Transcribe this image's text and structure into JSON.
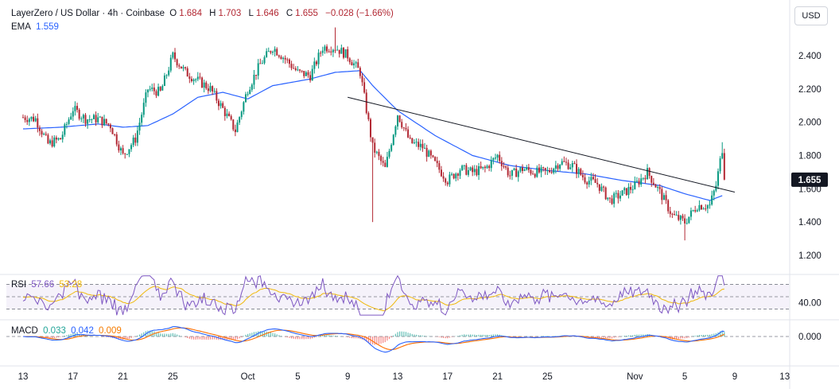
{
  "header": {
    "symbol": "LayerZero / US Dollar · 4h · Coinbase",
    "open_label": "O",
    "open": "1.684",
    "high_label": "H",
    "high": "1.703",
    "low_label": "L",
    "low": "1.646",
    "close_label": "C",
    "close": "1.655",
    "change": "−0.028 (−1.66%)",
    "ema_label": "EMA",
    "ema_value": "1.559"
  },
  "currency_button": "USD",
  "rsi_legend": {
    "label": "RSI",
    "rsi": "57.66",
    "ma": "53.28"
  },
  "macd_legend": {
    "label": "MACD",
    "hist": "0.033",
    "macd": "0.042",
    "signal": "0.009"
  },
  "colors": {
    "up": "#089981",
    "down": "#b22833",
    "ema": "#2962ff",
    "trendline": "#131722",
    "rsi": "#7e57c2",
    "rsi_ma": "#f0b90b",
    "macd": "#2962ff",
    "signal": "#ff6d00"
  },
  "chart_data": [
    {
      "type": "candlestick",
      "title": "LayerZero / US Dollar · 4h · Coinbase",
      "price_axis_ticks": [
        "2.400",
        "2.200",
        "2.000",
        "1.800",
        "1.600",
        "1.400",
        "1.200"
      ],
      "price_axis_values": [
        2.4,
        2.2,
        2.0,
        1.8,
        1.6,
        1.4,
        1.2
      ],
      "ylim": [
        1.1,
        2.7
      ],
      "last_price": "1.655",
      "x_ticks": [
        "13",
        "17",
        "21",
        "25",
        "Oct",
        "5",
        "9",
        "13",
        "17",
        "21",
        "25",
        "Nov",
        "5",
        "9",
        "13"
      ],
      "price_keypoints": [
        {
          "x": "Sep 13",
          "price": 2.03
        },
        {
          "x": "Sep 14",
          "price": 2.02
        },
        {
          "x": "Sep 15",
          "price": 1.87
        },
        {
          "x": "Sep 16",
          "price": 1.9
        },
        {
          "x": "Sep 17",
          "price": 2.08
        },
        {
          "x": "Sep 18",
          "price": 2.02
        },
        {
          "x": "Sep 19",
          "price": 2.02
        },
        {
          "x": "Sep 20",
          "price": 1.98
        },
        {
          "x": "Sep 21",
          "price": 1.8
        },
        {
          "x": "Sep 22",
          "price": 1.9
        },
        {
          "x": "Sep 23",
          "price": 2.2
        },
        {
          "x": "Sep 24",
          "price": 2.18
        },
        {
          "x": "Sep 25",
          "price": 2.4
        },
        {
          "x": "Sep 26",
          "price": 2.3
        },
        {
          "x": "Sep 27",
          "price": 2.25
        },
        {
          "x": "Sep 28",
          "price": 2.2
        },
        {
          "x": "Sep 29",
          "price": 2.08
        },
        {
          "x": "Sep 30",
          "price": 1.95
        },
        {
          "x": "Oct 1",
          "price": 2.2
        },
        {
          "x": "Oct 2",
          "price": 2.35
        },
        {
          "x": "Oct 3",
          "price": 2.45
        },
        {
          "x": "Oct 4",
          "price": 2.38
        },
        {
          "x": "Oct 5",
          "price": 2.3
        },
        {
          "x": "Oct 6",
          "price": 2.28
        },
        {
          "x": "Oct 7",
          "price": 2.45
        },
        {
          "x": "Oct 8",
          "price": 2.45
        },
        {
          "x": "Oct 9",
          "price": 2.4
        },
        {
          "x": "Oct 10",
          "price": 2.3
        },
        {
          "x": "Oct 11",
          "price": 1.85
        },
        {
          "x": "Oct 12",
          "price": 1.72
        },
        {
          "x": "Oct 13",
          "price": 2.05
        },
        {
          "x": "Oct 14",
          "price": 1.88
        },
        {
          "x": "Oct 15",
          "price": 1.85
        },
        {
          "x": "Oct 16",
          "price": 1.75
        },
        {
          "x": "Oct 17",
          "price": 1.65
        },
        {
          "x": "Oct 18",
          "price": 1.72
        },
        {
          "x": "Oct 19",
          "price": 1.7
        },
        {
          "x": "Oct 20",
          "price": 1.72
        },
        {
          "x": "Oct 21",
          "price": 1.8
        },
        {
          "x": "Oct 22",
          "price": 1.68
        },
        {
          "x": "Oct 23",
          "price": 1.72
        },
        {
          "x": "Oct 24",
          "price": 1.7
        },
        {
          "x": "Oct 25",
          "price": 1.7
        },
        {
          "x": "Oct 26",
          "price": 1.76
        },
        {
          "x": "Oct 27",
          "price": 1.74
        },
        {
          "x": "Oct 28",
          "price": 1.66
        },
        {
          "x": "Oct 29",
          "price": 1.63
        },
        {
          "x": "Oct 30",
          "price": 1.53
        },
        {
          "x": "Oct 31",
          "price": 1.57
        },
        {
          "x": "Nov 1",
          "price": 1.62
        },
        {
          "x": "Nov 2",
          "price": 1.7
        },
        {
          "x": "Nov 3",
          "price": 1.58
        },
        {
          "x": "Nov 4",
          "price": 1.44
        },
        {
          "x": "Nov 5",
          "price": 1.4
        },
        {
          "x": "Nov 6",
          "price": 1.5
        },
        {
          "x": "Nov 7",
          "price": 1.5
        },
        {
          "x": "Nov 7 12:00",
          "price": 1.62
        },
        {
          "x": "Nov 8",
          "price": 1.84
        },
        {
          "x": "Nov 8 04:00",
          "price": 1.655
        }
      ],
      "ema_keypoints": [
        {
          "x": "Sep 13",
          "price": 1.96
        },
        {
          "x": "Sep 16",
          "price": 1.97
        },
        {
          "x": "Sep 19",
          "price": 1.99
        },
        {
          "x": "Sep 21",
          "price": 1.97
        },
        {
          "x": "Sep 23",
          "price": 1.98
        },
        {
          "x": "Sep 25",
          "price": 2.05
        },
        {
          "x": "Sep 27",
          "price": 2.15
        },
        {
          "x": "Sep 29",
          "price": 2.18
        },
        {
          "x": "Oct 1",
          "price": 2.14
        },
        {
          "x": "Oct 3",
          "price": 2.22
        },
        {
          "x": "Oct 6",
          "price": 2.26
        },
        {
          "x": "Oct 8",
          "price": 2.3
        },
        {
          "x": "Oct 10",
          "price": 2.31
        },
        {
          "x": "Oct 11",
          "price": 2.22
        },
        {
          "x": "Oct 13",
          "price": 2.07
        },
        {
          "x": "Oct 16",
          "price": 1.92
        },
        {
          "x": "Oct 19",
          "price": 1.8
        },
        {
          "x": "Oct 22",
          "price": 1.74
        },
        {
          "x": "Oct 25",
          "price": 1.71
        },
        {
          "x": "Oct 28",
          "price": 1.69
        },
        {
          "x": "Oct 31",
          "price": 1.65
        },
        {
          "x": "Nov 3",
          "price": 1.62
        },
        {
          "x": "Nov 5",
          "price": 1.57
        },
        {
          "x": "Nov 7",
          "price": 1.53
        },
        {
          "x": "Nov 8",
          "price": 1.559
        }
      ],
      "trendline": [
        {
          "x": "Oct 9",
          "price": 2.15
        },
        {
          "x": "Nov 9",
          "price": 1.58
        }
      ]
    },
    {
      "type": "line",
      "title": "RSI",
      "y_ticks": [
        "40.00"
      ],
      "y_tick_values": [
        40
      ],
      "bands": [
        70,
        50,
        30
      ],
      "ylim": [
        15,
        85
      ],
      "series": [
        {
          "name": "RSI",
          "value_label": "57.66"
        },
        {
          "name": "MA",
          "value_label": "53.28"
        }
      ]
    },
    {
      "type": "line",
      "title": "MACD",
      "y_ticks": [
        "0.000"
      ],
      "y_tick_values": [
        0
      ],
      "series": [
        {
          "name": "Histogram",
          "value_label": "0.033"
        },
        {
          "name": "MACD",
          "value_label": "0.042"
        },
        {
          "name": "Signal",
          "value_label": "0.009"
        }
      ]
    }
  ]
}
